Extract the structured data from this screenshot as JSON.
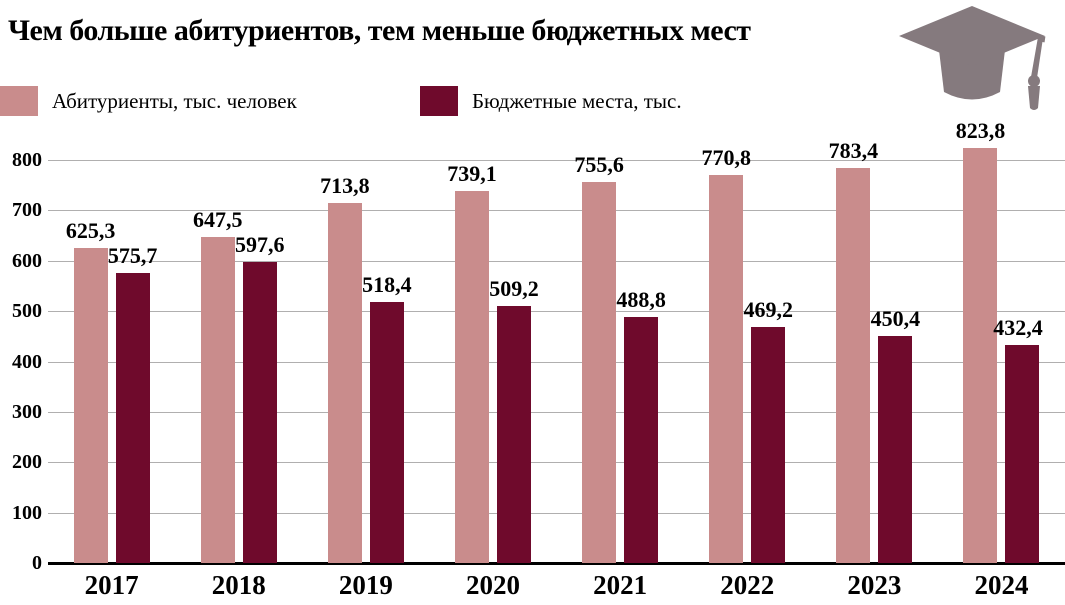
{
  "title": "Чем больше абитуриентов, тем меньше бюджетных мест",
  "legend": [
    {
      "label": "Абитуриенты, тыс. человек",
      "color": "#c98c8c"
    },
    {
      "label": "Бюджетные места, тыс.",
      "color": "#6f0a2c"
    }
  ],
  "icons": {
    "graduation_cap": "graduation-cap-icon"
  },
  "colors": {
    "background": "#ffffff",
    "grid": "#b0afaf",
    "axis": "#000000",
    "text": "#000000",
    "cap": "#857a7e"
  },
  "chart_data": {
    "type": "bar",
    "title": "Чем больше абитуриентов, тем меньше бюджетных мест",
    "categories": [
      "2017",
      "2018",
      "2019",
      "2020",
      "2021",
      "2022",
      "2023",
      "2024"
    ],
    "series": [
      {
        "name": "Абитуриенты, тыс. человек",
        "color": "#c98c8c",
        "values": [
          625.3,
          647.5,
          713.8,
          739.1,
          755.6,
          770.8,
          783.4,
          823.8
        ]
      },
      {
        "name": "Бюджетные места, тыс.",
        "color": "#6f0a2c",
        "values": [
          575.7,
          597.6,
          518.4,
          509.2,
          488.8,
          469.2,
          450.4,
          432.4
        ]
      }
    ],
    "xlabel": "",
    "ylabel": "",
    "ylim": [
      0,
      800
    ],
    "yticks": [
      0,
      100,
      200,
      300,
      400,
      500,
      600,
      700,
      800
    ],
    "grid": true,
    "legend_position": "top",
    "decimal_separator": ","
  }
}
